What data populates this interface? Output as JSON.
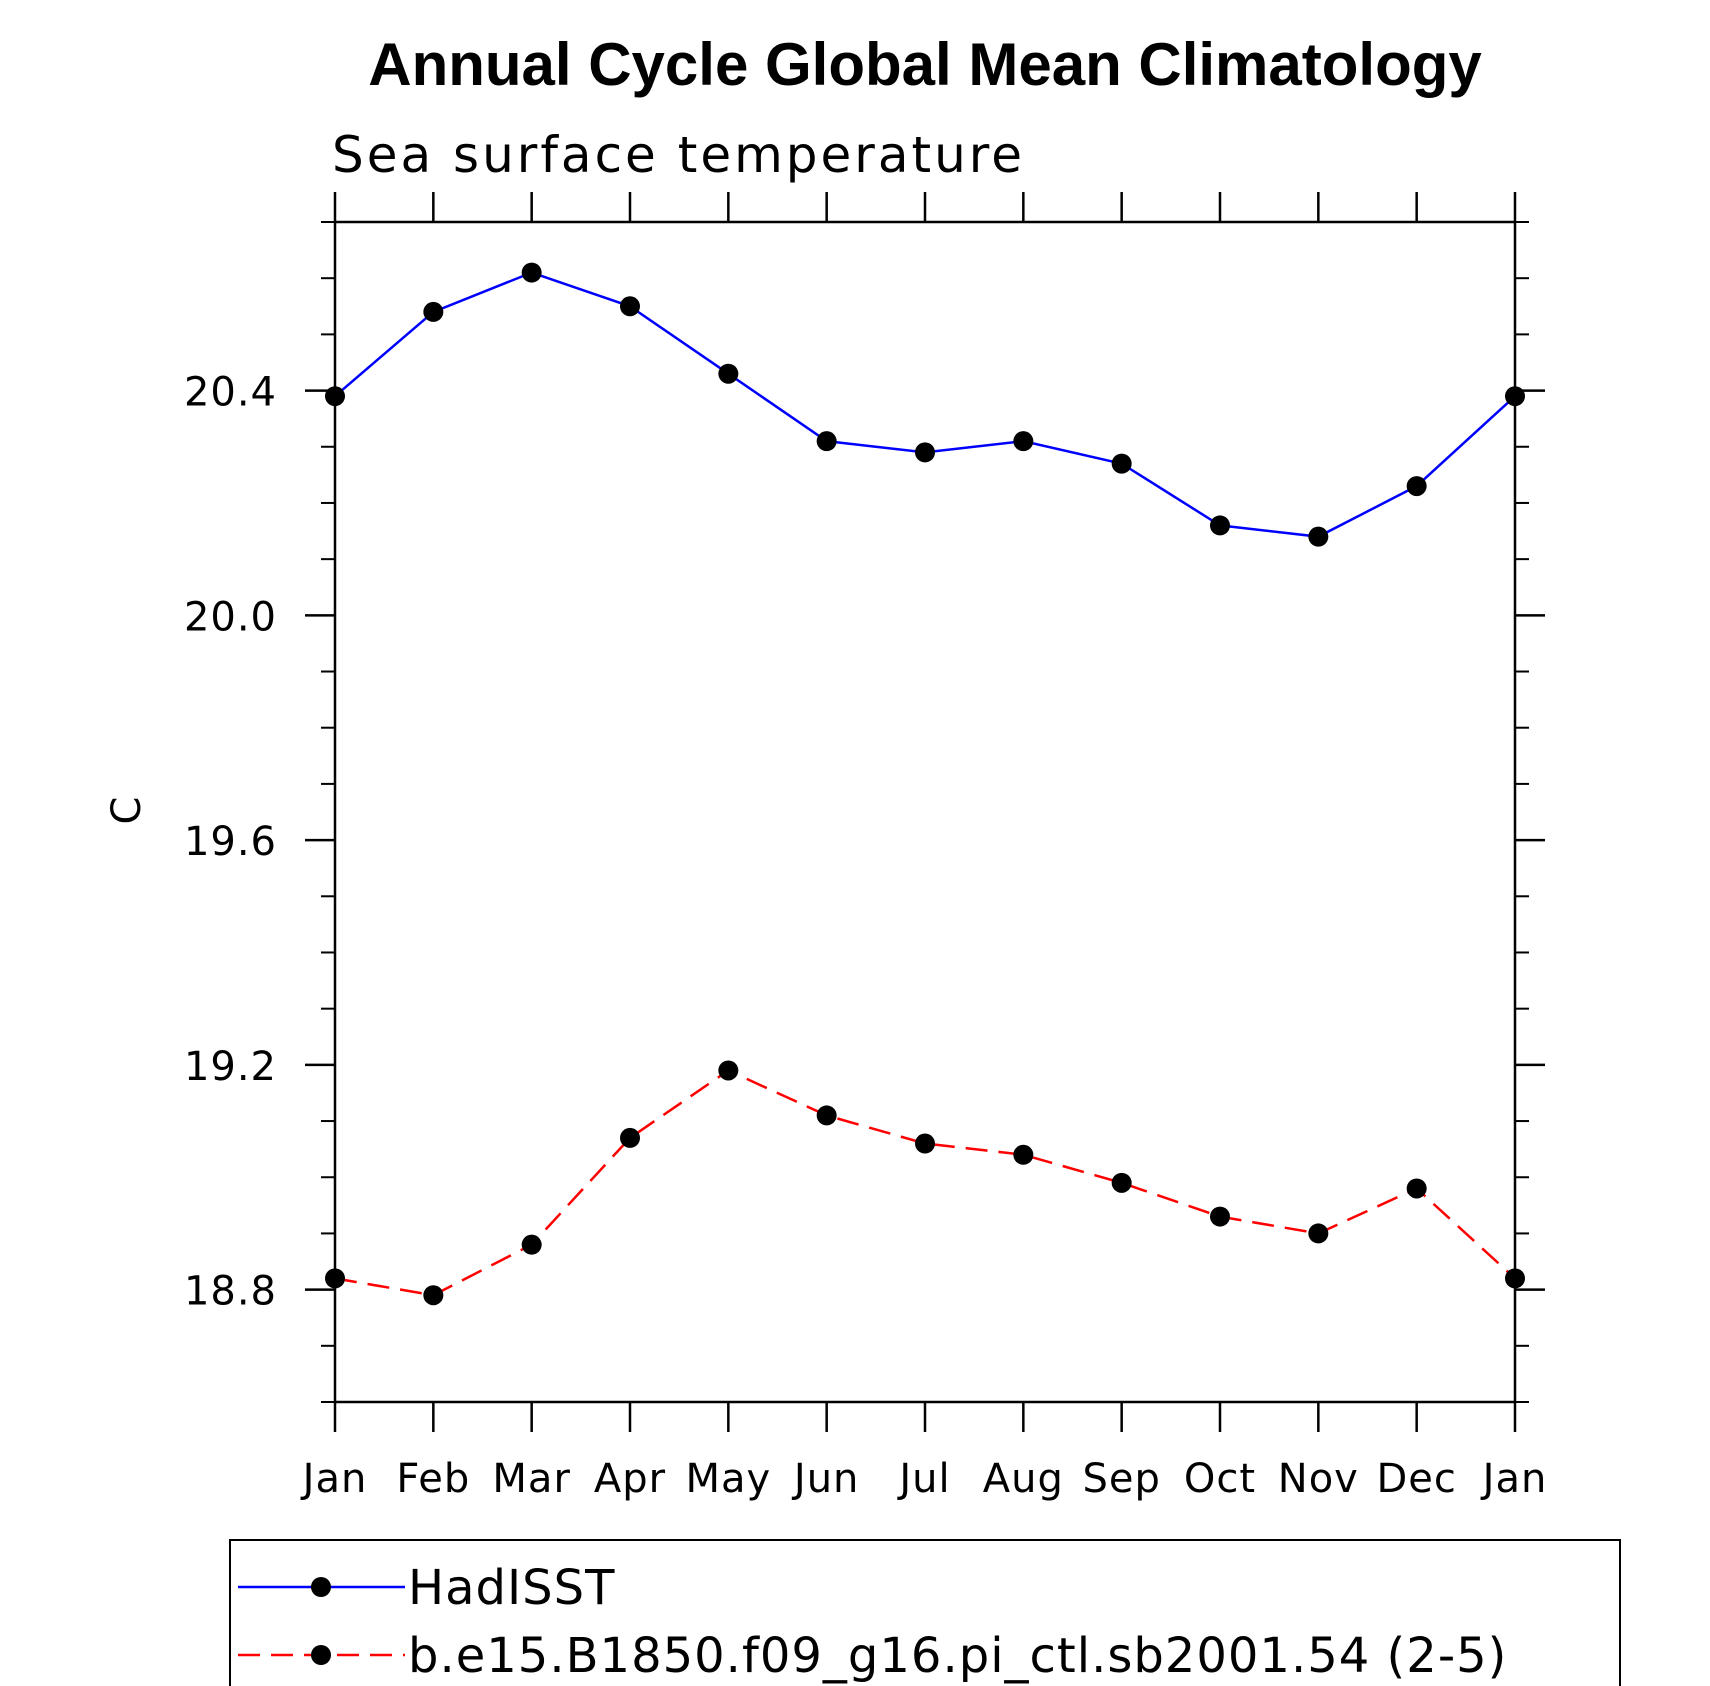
{
  "chart_data": {
    "type": "line",
    "title": "Annual Cycle Global Mean Climatology",
    "subtitle": "Sea surface temperature",
    "ylabel": "C",
    "xlabel": "",
    "categories": [
      "Jan",
      "Feb",
      "Mar",
      "Apr",
      "May",
      "Jun",
      "Jul",
      "Aug",
      "Sep",
      "Oct",
      "Nov",
      "Dec",
      "Jan"
    ],
    "ylim": [
      18.6,
      20.7
    ],
    "y_major_ticks": [
      18.8,
      19.2,
      19.6,
      20.0,
      20.4
    ],
    "y_tick_labels": [
      "18.8",
      "19.2",
      "19.6",
      "20.0",
      "20.4"
    ],
    "y_minor_step": 0.1,
    "grid": false,
    "legend_position": "bottom",
    "series": [
      {
        "name": "HadISST",
        "color": "#0000ff",
        "dash": "solid",
        "marker": "filled-circle",
        "values": [
          20.39,
          20.54,
          20.61,
          20.55,
          20.43,
          20.31,
          20.29,
          20.31,
          20.27,
          20.16,
          20.14,
          20.23,
          20.39
        ]
      },
      {
        "name": "b.e15.B1850.f09_g16.pi_ctl.sb2001.54 (2-5)",
        "color": "#ff0000",
        "dash": "dashed",
        "marker": "filled-circle",
        "values": [
          18.82,
          18.79,
          18.88,
          19.07,
          19.19,
          19.11,
          19.06,
          19.04,
          18.99,
          18.93,
          18.9,
          18.98,
          18.82
        ]
      }
    ]
  }
}
